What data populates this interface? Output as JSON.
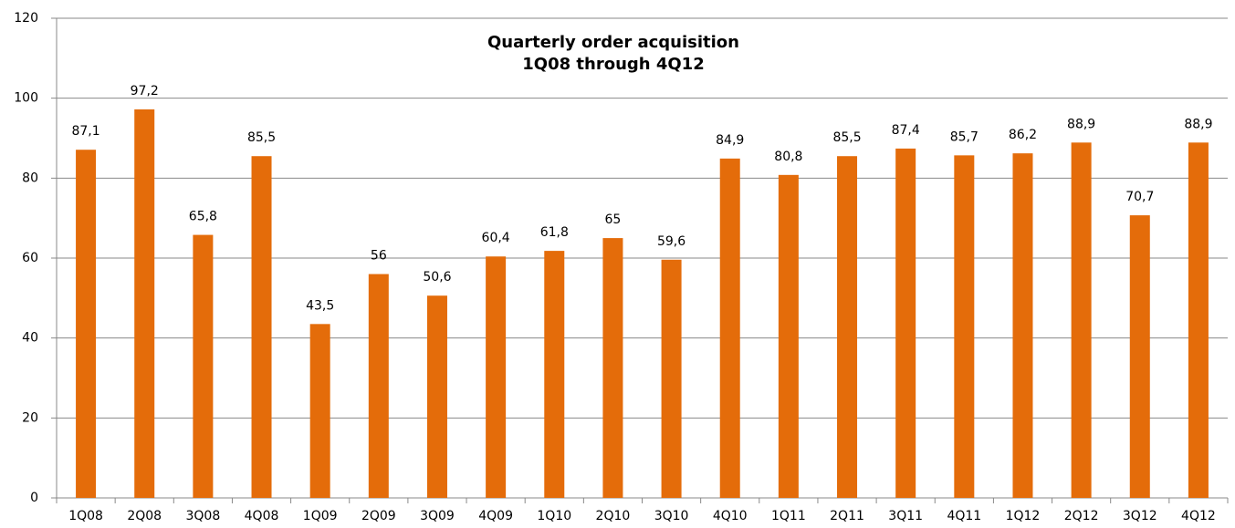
{
  "chart_data": {
    "type": "bar",
    "title": "Quarterly order acquisition",
    "subtitle": "1Q08 through 4Q12",
    "categories": [
      "1Q08",
      "2Q08",
      "3Q08",
      "4Q08",
      "1Q09",
      "2Q09",
      "3Q09",
      "4Q09",
      "1Q10",
      "2Q10",
      "3Q10",
      "4Q10",
      "1Q11",
      "2Q11",
      "3Q11",
      "4Q11",
      "1Q12",
      "2Q12",
      "3Q12",
      "4Q12"
    ],
    "values": [
      87.1,
      97.2,
      65.8,
      85.5,
      43.5,
      56,
      50.6,
      60.4,
      61.8,
      65,
      59.6,
      84.9,
      80.8,
      85.5,
      87.4,
      85.7,
      86.2,
      88.9,
      70.7,
      88.9
    ],
    "value_labels": [
      "87,1",
      "97,2",
      "65,8",
      "85,5",
      "43,5",
      "56",
      "50,6",
      "60,4",
      "61,8",
      "65",
      "59,6",
      "84,9",
      "80,8",
      "85,5",
      "87,4",
      "85,7",
      "86,2",
      "88,9",
      "70,7",
      "88,9"
    ],
    "color": "#e46c0a",
    "ylim": [
      0,
      120
    ],
    "yticks": [
      0,
      20,
      40,
      60,
      80,
      100,
      120
    ],
    "grid": true
  }
}
